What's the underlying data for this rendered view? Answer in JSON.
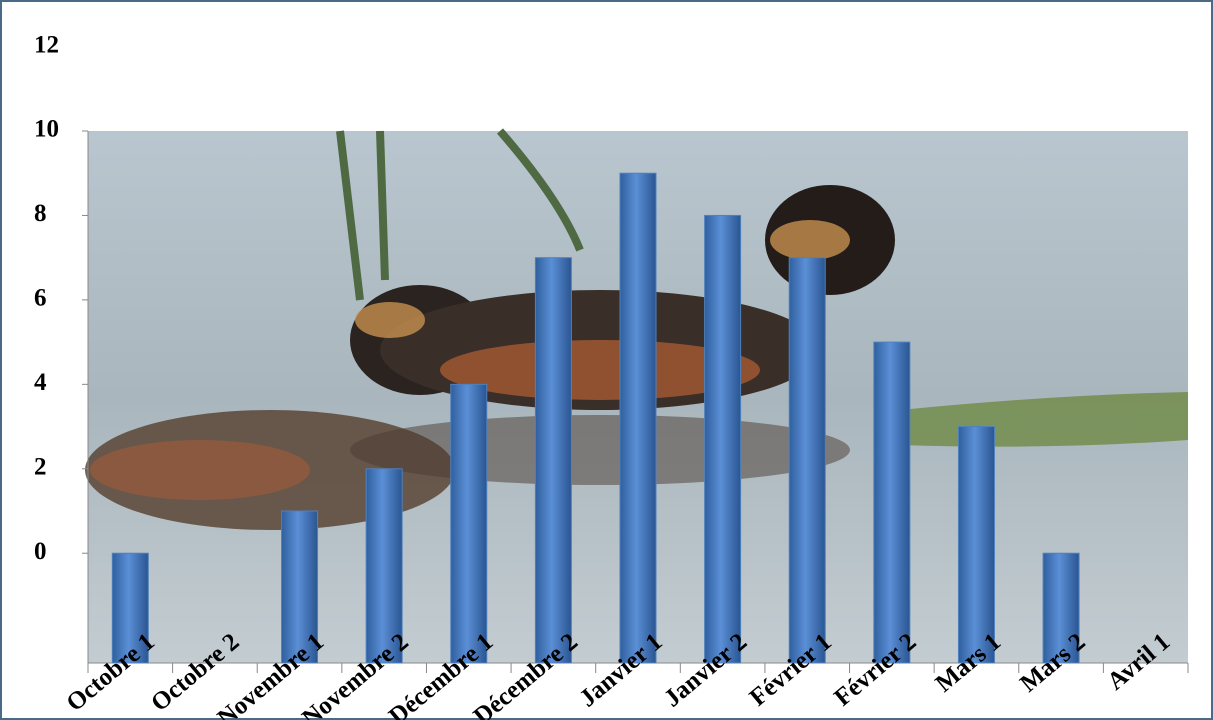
{
  "chart_data": {
    "type": "bar",
    "categories": [
      "Octobre 1",
      "Octobre 2",
      "Novembre 1",
      "Novembre 2",
      "Décembre 1",
      "Décembre 2",
      "Janvier 1",
      "Janvier 2",
      "Février 1",
      "Février 2",
      "Mars 1",
      "Mars 2",
      "Avril 1"
    ],
    "values": [
      0,
      null,
      1,
      2,
      4,
      7,
      9,
      8,
      7,
      5,
      3,
      0,
      null
    ],
    "color": "#4f81bd",
    "ylim": [
      -2.6,
      10
    ],
    "yticks": [
      0,
      2,
      4,
      6,
      8,
      10,
      12
    ],
    "grid": false
  }
}
